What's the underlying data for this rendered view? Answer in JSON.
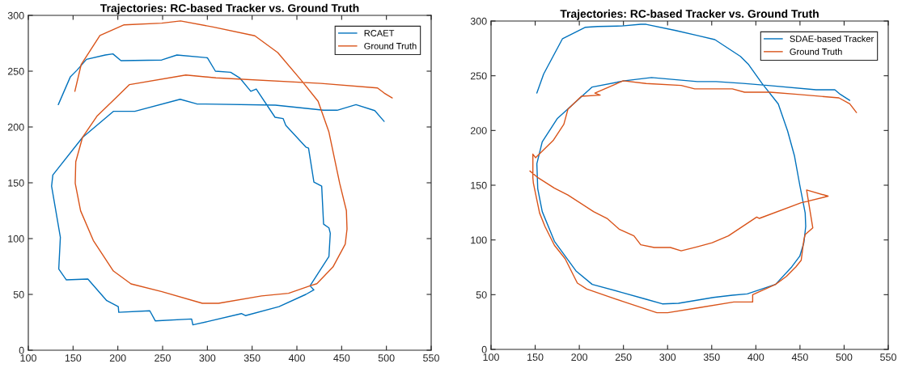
{
  "chart_data": [
    {
      "type": "line",
      "title": "Trajectories: RC-based Tracker vs. Ground Truth",
      "xlim": [
        100,
        550
      ],
      "ylim": [
        0,
        300
      ],
      "xticks": [
        100,
        150,
        200,
        250,
        300,
        350,
        400,
        450,
        500,
        550
      ],
      "yticks": [
        0,
        50,
        100,
        150,
        200,
        250,
        300
      ],
      "legend": "top right",
      "grid": false,
      "marker": "none",
      "line_style": "solid",
      "series": [
        {
          "name": "RCAET",
          "color": "#0072bd",
          "x": [
            133.5,
            147,
            154.5,
            165,
            186,
            194.5,
            203.5,
            249,
            266,
            300,
            309,
            326,
            336.5,
            348.5,
            354.6,
            375.6,
            384.7,
            387.6,
            410,
            413,
            419,
            427.7,
            429.8,
            435.8,
            437.3,
            435.8,
            414.7,
            419,
            410,
            380,
            342.5,
            338,
            300,
            283.8,
            282.4,
            241.8,
            235.7,
            201,
            200.5,
            187.6,
            166.5,
            142.5,
            134,
            135.8,
            126,
            127.4,
            160.5,
            195,
            219,
            269.6,
            288,
            376,
            429.8,
            445,
            466,
            487,
            497.5
          ],
          "values": [
            220,
            245,
            251,
            260.6,
            264.5,
            265.5,
            259.4,
            260,
            264.5,
            262,
            250,
            249,
            243.7,
            232,
            234,
            208.7,
            207.5,
            201.4,
            182,
            181,
            150.7,
            147,
            113,
            109.6,
            104.8,
            84,
            57.7,
            54,
            50,
            39,
            31,
            32.8,
            25.6,
            22.7,
            28,
            26.3,
            35.3,
            34,
            39,
            44.4,
            63.8,
            63,
            72.7,
            101.2,
            147,
            157,
            190.6,
            214,
            214,
            224.8,
            220.7,
            219.6,
            215,
            215,
            220,
            214.7,
            205
          ]
        },
        {
          "name": "Ground Truth",
          "color": "#d95319",
          "x": [
            152,
            159,
            180,
            207,
            249,
            270,
            306.4,
            353,
            378.6,
            405.7,
            423.7,
            435.8,
            447.8,
            455.3,
            456,
            454,
            440.3,
            422.3,
            414.7,
            390.7,
            360.6,
            312.5,
            294.4,
            249.3,
            214.7,
            195,
            172.6,
            158.4,
            152.4,
            153,
            160.5,
            177,
            195,
            213,
            276,
            309.5,
            427,
            490,
            497.5,
            506.5
          ],
          "values": [
            232,
            255.8,
            282,
            291.5,
            293,
            295,
            289.6,
            281.7,
            266.7,
            241,
            223,
            195.4,
            149.5,
            125,
            108.5,
            95,
            74.6,
            59.6,
            57.7,
            51,
            48.6,
            42,
            42,
            52.4,
            59.4,
            71,
            98.3,
            124.9,
            149.5,
            168.8,
            190.6,
            210,
            224,
            238,
            246.6,
            244,
            239,
            235,
            230.4,
            226
          ]
        }
      ]
    },
    {
      "type": "line",
      "title": "Trajectories: RC-based Tracker vs. Ground Truth",
      "xlim": [
        100,
        550
      ],
      "ylim": [
        0,
        300
      ],
      "xticks": [
        100,
        150,
        200,
        250,
        300,
        350,
        400,
        450,
        500,
        550
      ],
      "yticks": [
        0,
        50,
        100,
        150,
        200,
        250,
        300
      ],
      "legend": "top right",
      "grid": false,
      "marker": "none",
      "line_style": "solid",
      "series": [
        {
          "name": "SDAE-based Tracker",
          "color": "#0072bd",
          "x": [
            151.9,
            159.6,
            181,
            207,
            220.7,
            248,
            269.6,
            275.7,
            309.3,
            333.7,
            353.6,
            382.6,
            391.8,
            407,
            425.4,
            436,
            443.7,
            449.8,
            455.9,
            456.5,
            454.4,
            449.8,
            440.7,
            422.3,
            390.3,
            373.4,
            352,
            312.3,
            294,
            275.7,
            248.2,
            214.6,
            196.2,
            171.8,
            158,
            152.9,
            151.9,
            158,
            174.9,
            214.6,
            251.2,
            281.8,
            333.7,
            355,
            385.7,
            416.2,
            468.2,
            489.5,
            495.7,
            506.4
          ],
          "values": [
            234.2,
            251.6,
            283.9,
            294.3,
            295,
            295.5,
            297,
            297,
            291.3,
            286.8,
            283,
            267.7,
            260.2,
            243,
            224.3,
            199.5,
            177,
            150,
            124.6,
            112.3,
            97.5,
            85.2,
            75.4,
            59.4,
            50.7,
            49.5,
            47.5,
            42.1,
            41.6,
            45.8,
            52,
            59.4,
            71.7,
            98.8,
            125.9,
            146.8,
            169.7,
            189.6,
            210.7,
            239.7,
            245.4,
            248.4,
            244.7,
            244.7,
            243,
            241,
            237.2,
            237.2,
            233,
            227.5
          ]
        },
        {
          "name": "Ground Truth",
          "color": "#d95319",
          "x": [
            514,
            506.4,
            494.1,
            446.8,
            416.2,
            387.2,
            373.4,
            330.7,
            315.4,
            275.7,
            249.7,
            217.6,
            223.7,
            202.4,
            187.1,
            182.5,
            170.3,
            150.4,
            147.4,
            147.4,
            148,
            155,
            161.1,
            171.8,
            184,
            197.8,
            208.5,
            232.9,
            251.2,
            287.9,
            300.1,
            333.7,
            375,
            396.4,
            396.4,
            422.3,
            434.6,
            445.3,
            451.4,
            454.4,
            455.9,
            464.5,
            457.5,
            481.9,
            457.5,
            451.4,
            404,
            401,
            368.9,
            350.5,
            333.7,
            315.4,
            303.2,
            284.8,
            269.6,
            261.9,
            245.1,
            231.4,
            216.1,
            187.1,
            171.8,
            153.5,
            144
          ],
          "values": [
            216.4,
            224.3,
            229.8,
            233,
            235,
            235,
            238,
            238,
            241.2,
            242.9,
            245.4,
            234.2,
            232.3,
            231.3,
            219.4,
            205.7,
            190.8,
            175.2,
            178.4,
            156.7,
            151.7,
            124.6,
            112.3,
            95.1,
            82.8,
            60.6,
            55.2,
            48.3,
            43.3,
            33.5,
            33.5,
            37.9,
            43.3,
            43.3,
            50,
            59.4,
            66.7,
            75.4,
            81.5,
            100,
            104.9,
            111.1,
            145.6,
            140,
            135.1,
            134,
            119.7,
            120.9,
            103.7,
            97.5,
            93.8,
            90.1,
            93.1,
            93.1,
            95.6,
            103.7,
            109.9,
            119.7,
            125.9,
            141.1,
            147.3,
            156.7,
            163
          ]
        }
      ]
    }
  ]
}
